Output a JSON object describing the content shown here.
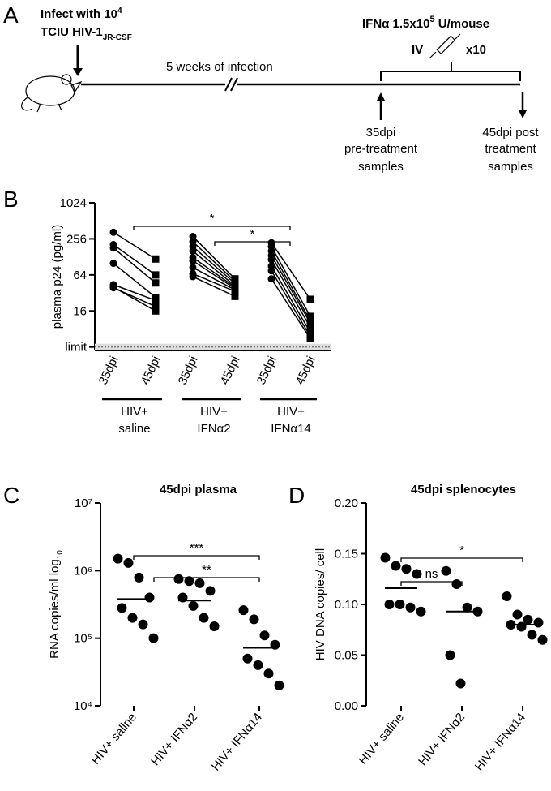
{
  "panels": [
    "A",
    "B",
    "C",
    "D"
  ],
  "timeline": {
    "infect": [
      "Infect with 10",
      "4"
    ],
    "virus": [
      "TCIU HIV-1",
      "JR-CSF"
    ],
    "treatment": [
      "IFNα 1.5x10",
      "5",
      " U/mouse"
    ],
    "route": "IV",
    "doses": "x10",
    "duration": "5 weeks of infection",
    "pre": [
      "35dpi",
      "pre-treatment",
      "samples"
    ],
    "post": [
      "45dpi post",
      "treatment",
      "samples"
    ]
  },
  "chart_data": [
    {
      "type": "paired",
      "y_label": "plasma p24 (pg/ml)",
      "yscale": "log",
      "ylim": [
        3.5,
        1024
      ],
      "yticks": [
        {
          "value": 4,
          "label": "limit"
        },
        16,
        64,
        256,
        1024
      ],
      "categories": [
        "35dpi",
        "45dpi",
        "35dpi",
        "45dpi",
        "35dpi",
        "45dpi"
      ],
      "color": "#000000",
      "groups": [
        {
          "name": [
            "HIV+",
            "saline"
          ],
          "pre": [
            330,
            205,
            180,
            100,
            44,
            40,
            39
          ],
          "post": [
            118,
            64,
            47,
            27,
            24,
            16,
            19
          ]
        },
        {
          "name": [
            "HIV+",
            "IFNα2"
          ],
          "pre": [
            280,
            230,
            190,
            160,
            125,
            110,
            85,
            67,
            60
          ],
          "post": [
            55,
            50,
            46,
            42,
            40,
            38,
            36,
            34,
            28
          ]
        },
        {
          "name": [
            "HIV+",
            "IFNα14"
          ],
          "pre": [
            220,
            190,
            160,
            135,
            115,
            90,
            75,
            55
          ],
          "post": [
            25,
            13,
            11,
            10,
            8.5,
            7,
            6,
            5.5
          ]
        }
      ],
      "significance": [
        "*",
        "*"
      ]
    },
    {
      "type": "dot",
      "title": "45dpi plasma",
      "y_label": [
        "RNA copies/ml log",
        "10"
      ],
      "yscale": "log",
      "ylim": [
        10000,
        10000000
      ],
      "yticks": [
        {
          "value": 10000,
          "label": "10⁴"
        },
        {
          "value": 100000,
          "label": "10⁵"
        },
        {
          "value": 1000000,
          "label": "10⁶"
        },
        {
          "value": 10000000,
          "label": "10⁷"
        }
      ],
      "categories": [
        "HIV+ saline",
        "HIV+ IFNα2",
        "HIV+ IFNα14"
      ],
      "color": "#000000",
      "groups": [
        {
          "values": [
            1500000,
            1300000,
            790000,
            400000,
            280000,
            200000,
            160000,
            100000
          ],
          "mean": 380000
        },
        {
          "values": [
            750000,
            700000,
            650000,
            500000,
            400000,
            300000,
            200000,
            150000
          ],
          "mean": 360000
        },
        {
          "values": [
            260000,
            190000,
            110000,
            80000,
            50000,
            40000,
            30000,
            20000
          ],
          "mean": 72000
        }
      ],
      "significance": [
        "***",
        "**"
      ]
    },
    {
      "type": "dot",
      "title": "45dpi splenocytes",
      "y_label": [
        "HIV DNA copies/ cell"
      ],
      "yscale": "linear",
      "ylim": [
        0,
        0.2
      ],
      "yticks": [
        {
          "value": 0,
          "label": "0.00"
        },
        {
          "value": 0.05,
          "label": "0.05"
        },
        {
          "value": 0.1,
          "label": "0.10"
        },
        {
          "value": 0.15,
          "label": "0.15"
        },
        {
          "value": 0.2,
          "label": "0.20"
        }
      ],
      "categories": [
        "HIV+ saline",
        "HIV+ IFNα2",
        "HIV+ IFNα14"
      ],
      "color": "#000000",
      "groups": [
        {
          "values": [
            0.146,
            0.138,
            0.135,
            0.13,
            0.1,
            0.1,
            0.097,
            0.093
          ],
          "mean": 0.116
        },
        {
          "values": [
            0.133,
            0.12,
            0.097,
            0.093,
            0.05,
            0.022
          ],
          "mean": 0.093
        },
        {
          "values": [
            0.108,
            0.09,
            0.085,
            0.082,
            0.08,
            0.078,
            0.07,
            0.065
          ],
          "mean": 0.08
        }
      ],
      "significance": [
        "*",
        "ns"
      ]
    }
  ]
}
